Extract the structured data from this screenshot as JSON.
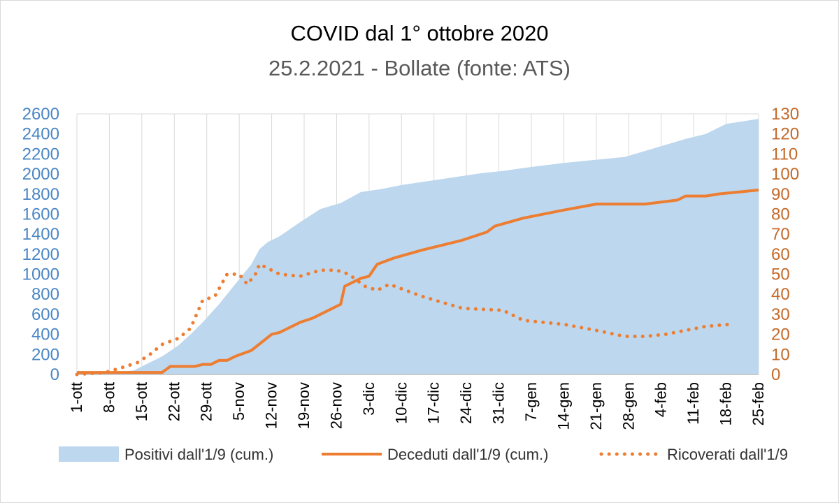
{
  "chart_data": {
    "type": "area",
    "title": "COVID dal 1° ottobre 2020",
    "subtitle": "25.2.2021 - Bollate (fonte: ATS)",
    "x_tick_labels": [
      "1-ott",
      "8-ott",
      "15-ott",
      "22-ott",
      "29-ott",
      "5-nov",
      "12-nov",
      "19-nov",
      "26-nov",
      "3-dic",
      "10-dic",
      "17-dic",
      "24-dic",
      "31-dic",
      "7-gen",
      "14-gen",
      "21-gen",
      "28-gen",
      "4-feb",
      "11-feb",
      "18-feb",
      "25-feb"
    ],
    "y_left": {
      "range": [
        0,
        2600
      ],
      "step": 200,
      "ticks": [
        "0",
        "200",
        "400",
        "600",
        "800",
        "1000",
        "1200",
        "1400",
        "1600",
        "1800",
        "2000",
        "2200",
        "2400",
        "2600"
      ]
    },
    "y_right": {
      "range": [
        0,
        130
      ],
      "step": 10,
      "ticks": [
        "0",
        "10",
        "20",
        "30",
        "40",
        "50",
        "60",
        "70",
        "80",
        "90",
        "100",
        "110",
        "120",
        "130"
      ]
    },
    "grid": "vertical",
    "legend": {
      "placement": "bottom"
    },
    "series": [
      {
        "name": "Positivi dall'1/9 (cum.)",
        "kind": "area",
        "axis": "left",
        "color": "#bdd7ee",
        "points": [
          [
            0,
            10
          ],
          [
            7,
            15
          ],
          [
            14,
            40
          ],
          [
            17,
            100
          ],
          [
            21,
            180
          ],
          [
            25,
            290
          ],
          [
            28,
            400
          ],
          [
            31,
            520
          ],
          [
            35,
            700
          ],
          [
            38,
            850
          ],
          [
            41,
            1000
          ],
          [
            43,
            1100
          ],
          [
            45,
            1250
          ],
          [
            47,
            1320
          ],
          [
            50,
            1380
          ],
          [
            55,
            1520
          ],
          [
            60,
            1650
          ],
          [
            65,
            1710
          ],
          [
            70,
            1820
          ],
          [
            75,
            1850
          ],
          [
            80,
            1890
          ],
          [
            90,
            1950
          ],
          [
            100,
            2010
          ],
          [
            105,
            2030
          ],
          [
            110,
            2060
          ],
          [
            120,
            2110
          ],
          [
            130,
            2150
          ],
          [
            135,
            2170
          ],
          [
            140,
            2230
          ],
          [
            145,
            2290
          ],
          [
            150,
            2350
          ],
          [
            155,
            2400
          ],
          [
            160,
            2500
          ],
          [
            168,
            2550
          ]
        ]
      },
      {
        "name": "Deceduti dall'1/9 (cum.)",
        "kind": "line",
        "axis": "right",
        "color": "#ed7d31",
        "points": [
          [
            0,
            1
          ],
          [
            7,
            1
          ],
          [
            14,
            1
          ],
          [
            21,
            1
          ],
          [
            23,
            4
          ],
          [
            29,
            4
          ],
          [
            31,
            5
          ],
          [
            33,
            5
          ],
          [
            35,
            7
          ],
          [
            37,
            7
          ],
          [
            39,
            9
          ],
          [
            43,
            12
          ],
          [
            48,
            20
          ],
          [
            50,
            21
          ],
          [
            55,
            26
          ],
          [
            58,
            28
          ],
          [
            60,
            30
          ],
          [
            65,
            35
          ],
          [
            66,
            44
          ],
          [
            70,
            48
          ],
          [
            72,
            49
          ],
          [
            74,
            55
          ],
          [
            78,
            58
          ],
          [
            85,
            62
          ],
          [
            95,
            67
          ],
          [
            101,
            71
          ],
          [
            103,
            74
          ],
          [
            110,
            78
          ],
          [
            120,
            82
          ],
          [
            128,
            85
          ],
          [
            140,
            85
          ],
          [
            148,
            87
          ],
          [
            150,
            89
          ],
          [
            155,
            89
          ],
          [
            158,
            90
          ],
          [
            168,
            92
          ]
        ]
      },
      {
        "name": "Ricoverati dall'1/9",
        "kind": "dotted",
        "axis": "right",
        "color": "#ed7d31",
        "points": [
          [
            0,
            0
          ],
          [
            7,
            1
          ],
          [
            12,
            4
          ],
          [
            15,
            6
          ],
          [
            18,
            10
          ],
          [
            21,
            15
          ],
          [
            25,
            18
          ],
          [
            28,
            23
          ],
          [
            31,
            37
          ],
          [
            34,
            39
          ],
          [
            37,
            50
          ],
          [
            40,
            50
          ],
          [
            42,
            45
          ],
          [
            44,
            50
          ],
          [
            45,
            55
          ],
          [
            50,
            50
          ],
          [
            55,
            49
          ],
          [
            60,
            52
          ],
          [
            64,
            52
          ],
          [
            67,
            50
          ],
          [
            71,
            44
          ],
          [
            74,
            42
          ],
          [
            77,
            45
          ],
          [
            85,
            39
          ],
          [
            95,
            33
          ],
          [
            105,
            32
          ],
          [
            110,
            27
          ],
          [
            120,
            25
          ],
          [
            128,
            22
          ],
          [
            135,
            19
          ],
          [
            140,
            19
          ],
          [
            145,
            20
          ],
          [
            150,
            22
          ],
          [
            155,
            24
          ],
          [
            161,
            25
          ]
        ]
      }
    ]
  }
}
